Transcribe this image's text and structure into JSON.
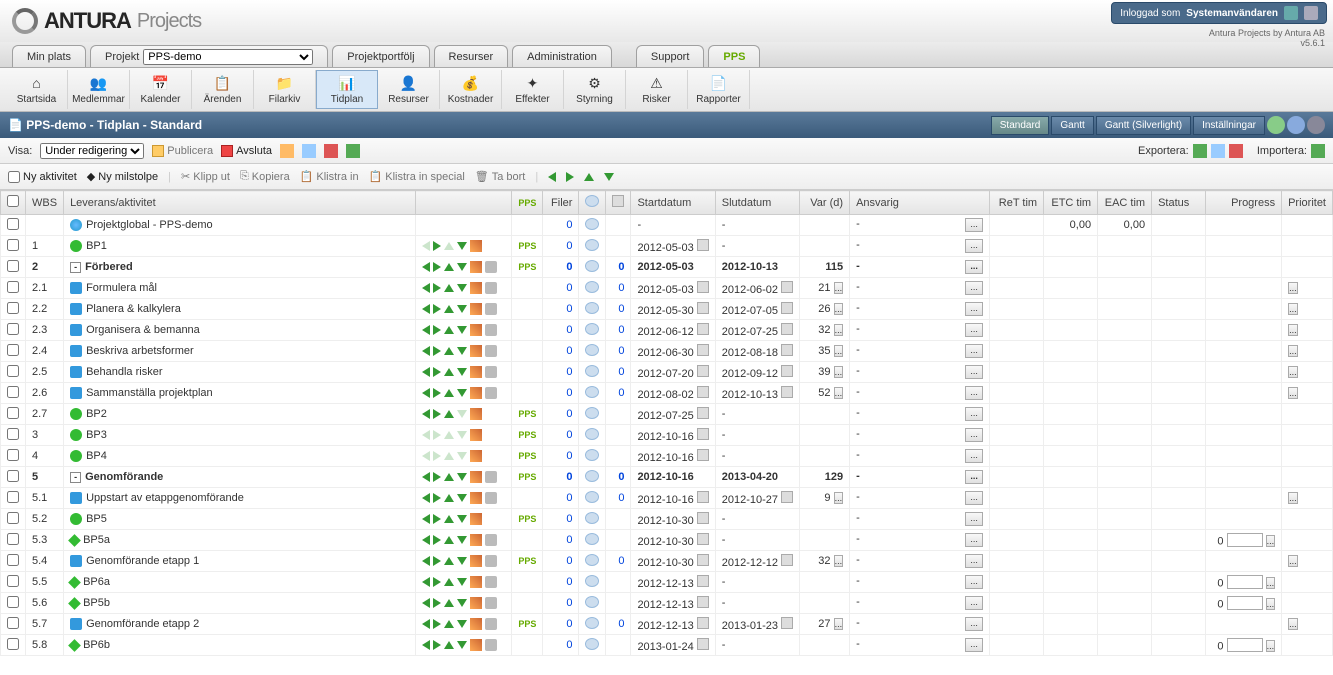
{
  "brand": {
    "name": "ANTURA",
    "product": "Projects",
    "byline": "Antura Projects by Antura AB",
    "version": "v5.6.1"
  },
  "user": {
    "label": "Inloggad som",
    "name": "Systemanvändaren"
  },
  "tabs": {
    "minplats": "Min plats",
    "projekt": "Projekt",
    "projval": "PPS-demo",
    "portfolj": "Projektportfölj",
    "resurser": "Resurser",
    "admin": "Administration",
    "support": "Support",
    "pps": "PPS"
  },
  "subnav": {
    "startsida": "Startsida",
    "medlemmar": "Medlemmar",
    "kalender": "Kalender",
    "arenden": "Ärenden",
    "filarkiv": "Filarkiv",
    "tidplan": "Tidplan",
    "resurser": "Resurser",
    "kostnader": "Kostnader",
    "effekter": "Effekter",
    "styrning": "Styrning",
    "risker": "Risker",
    "rapporter": "Rapporter"
  },
  "title": {
    "text": "PPS-demo - Tidplan - Standard",
    "r": {
      "std": "Standard",
      "gantt": "Gantt",
      "gsilver": "Gantt (Silverlight)",
      "inst": "Inställningar"
    }
  },
  "bar1": {
    "visa": "Visa:",
    "sel": "Under redigering",
    "pub": "Publicera",
    "avs": "Avsluta",
    "exp": "Exportera:",
    "imp": "Importera:"
  },
  "bar2": {
    "nyakt": "Ny aktivitet",
    "nymil": "Ny milstolpe",
    "klipp": "Klipp ut",
    "kopiera": "Kopiera",
    "klistra": "Klistra in",
    "klistras": "Klistra in special",
    "tabort": "Ta bort"
  },
  "cols": {
    "wbs": "WBS",
    "lev": "Leverans/aktivitet",
    "pps": "PPS",
    "filer": "Filer",
    "start": "Startdatum",
    "slut": "Slutdatum",
    "var": "Var (d)",
    "ansv": "Ansvarig",
    "ret": "ReT tim",
    "etc": "ETC tim",
    "eac": "EAC tim",
    "status": "Status",
    "prog": "Progress",
    "prio": "Prioritet"
  },
  "rows": [
    {
      "wbs": "",
      "name": "Projektglobal - PPS-demo",
      "icon": "globe",
      "bold": false,
      "tree": "",
      "pps": false,
      "filer": "0",
      "c0": null,
      "start": "-",
      "cal1": false,
      "slut": "-",
      "cal2": false,
      "var": "",
      "varbtn": false,
      "ansv": "-",
      "ansvbtn": true,
      "etc": "0,00",
      "eac": "0,00",
      "prog": null,
      "ctrls": false,
      "trash": false
    },
    {
      "wbs": "1",
      "name": "BP1",
      "icon": "dot",
      "bold": false,
      "tree": "",
      "pps": true,
      "filer": "0",
      "c0": null,
      "start": "2012-05-03",
      "cal1": true,
      "slut": "-",
      "cal2": false,
      "var": "",
      "varbtn": false,
      "ansv": "-",
      "ansvbtn": true,
      "etc": "",
      "eac": "",
      "prog": null,
      "ctrls": true,
      "trash": false,
      "dimL": true,
      "dimU": true
    },
    {
      "wbs": "2",
      "name": "Förbered",
      "icon": "",
      "bold": true,
      "tree": "-",
      "pps": true,
      "filer": "0",
      "c0": "0",
      "start": "2012-05-03",
      "cal1": false,
      "slut": "2012-10-13",
      "cal2": false,
      "var": "115",
      "varbtn": false,
      "ansv": "-",
      "ansvbtn": true,
      "etc": "",
      "eac": "",
      "prog": null,
      "ctrls": true,
      "trash": true
    },
    {
      "wbs": "2.1",
      "name": "Formulera mål",
      "icon": "box",
      "bold": false,
      "tree": "",
      "pps": false,
      "filer": "0",
      "c0": "0",
      "start": "2012-05-03",
      "cal1": true,
      "slut": "2012-06-02",
      "cal2": true,
      "var": "21",
      "varbtn": true,
      "ansv": "-",
      "ansvbtn": true,
      "etc": "",
      "eac": "",
      "prog": null,
      "ctrls": true,
      "trash": true,
      "ind": 2,
      "prio": true
    },
    {
      "wbs": "2.2",
      "name": "Planera & kalkylera",
      "icon": "box",
      "bold": false,
      "tree": "",
      "pps": false,
      "filer": "0",
      "c0": "0",
      "start": "2012-05-30",
      "cal1": true,
      "slut": "2012-07-05",
      "cal2": true,
      "var": "26",
      "varbtn": true,
      "ansv": "-",
      "ansvbtn": true,
      "etc": "",
      "eac": "",
      "prog": null,
      "ctrls": true,
      "trash": true,
      "ind": 2,
      "prio": true
    },
    {
      "wbs": "2.3",
      "name": "Organisera & bemanna",
      "icon": "box",
      "bold": false,
      "tree": "",
      "pps": false,
      "filer": "0",
      "c0": "0",
      "start": "2012-06-12",
      "cal1": true,
      "slut": "2012-07-25",
      "cal2": true,
      "var": "32",
      "varbtn": true,
      "ansv": "-",
      "ansvbtn": true,
      "etc": "",
      "eac": "",
      "prog": null,
      "ctrls": true,
      "trash": true,
      "ind": 2,
      "prio": true
    },
    {
      "wbs": "2.4",
      "name": "Beskriva arbetsformer",
      "icon": "box",
      "bold": false,
      "tree": "",
      "pps": false,
      "filer": "0",
      "c0": "0",
      "start": "2012-06-30",
      "cal1": true,
      "slut": "2012-08-18",
      "cal2": true,
      "var": "35",
      "varbtn": true,
      "ansv": "-",
      "ansvbtn": true,
      "etc": "",
      "eac": "",
      "prog": null,
      "ctrls": true,
      "trash": true,
      "ind": 2,
      "prio": true
    },
    {
      "wbs": "2.5",
      "name": "Behandla risker",
      "icon": "box",
      "bold": false,
      "tree": "",
      "pps": false,
      "filer": "0",
      "c0": "0",
      "start": "2012-07-20",
      "cal1": true,
      "slut": "2012-09-12",
      "cal2": true,
      "var": "39",
      "varbtn": true,
      "ansv": "-",
      "ansvbtn": true,
      "etc": "",
      "eac": "",
      "prog": null,
      "ctrls": true,
      "trash": true,
      "ind": 2,
      "prio": true
    },
    {
      "wbs": "2.6",
      "name": "Sammanställa projektplan",
      "icon": "box",
      "bold": false,
      "tree": "",
      "pps": false,
      "filer": "0",
      "c0": "0",
      "start": "2012-08-02",
      "cal1": true,
      "slut": "2012-10-13",
      "cal2": true,
      "var": "52",
      "varbtn": true,
      "ansv": "-",
      "ansvbtn": true,
      "etc": "",
      "eac": "",
      "prog": null,
      "ctrls": true,
      "trash": true,
      "ind": 2,
      "prio": true
    },
    {
      "wbs": "2.7",
      "name": "BP2",
      "icon": "dot",
      "bold": false,
      "tree": "",
      "pps": true,
      "filer": "0",
      "c0": null,
      "start": "2012-07-25",
      "cal1": true,
      "slut": "-",
      "cal2": false,
      "var": "",
      "varbtn": false,
      "ansv": "-",
      "ansvbtn": true,
      "etc": "",
      "eac": "",
      "prog": null,
      "ctrls": true,
      "trash": false,
      "ind": 2,
      "dimD": true
    },
    {
      "wbs": "3",
      "name": "BP3",
      "icon": "dot",
      "bold": false,
      "tree": "",
      "pps": true,
      "filer": "0",
      "c0": null,
      "start": "2012-10-16",
      "cal1": true,
      "slut": "-",
      "cal2": false,
      "var": "",
      "varbtn": false,
      "ansv": "-",
      "ansvbtn": true,
      "etc": "",
      "eac": "",
      "prog": null,
      "ctrls": true,
      "trash": false,
      "dimL": true,
      "dimR": true,
      "dimU": true,
      "dimD": true
    },
    {
      "wbs": "4",
      "name": "BP4",
      "icon": "dot",
      "bold": false,
      "tree": "",
      "pps": true,
      "filer": "0",
      "c0": null,
      "start": "2012-10-16",
      "cal1": true,
      "slut": "-",
      "cal2": false,
      "var": "",
      "varbtn": false,
      "ansv": "-",
      "ansvbtn": true,
      "etc": "",
      "eac": "",
      "prog": null,
      "ctrls": true,
      "trash": false,
      "dimL": true,
      "dimR": true,
      "dimU": true,
      "dimD": true
    },
    {
      "wbs": "5",
      "name": "Genomförande",
      "icon": "",
      "bold": true,
      "tree": "-",
      "pps": true,
      "filer": "0",
      "c0": "0",
      "start": "2012-10-16",
      "cal1": false,
      "slut": "2013-04-20",
      "cal2": false,
      "var": "129",
      "varbtn": false,
      "ansv": "-",
      "ansvbtn": true,
      "etc": "",
      "eac": "",
      "prog": null,
      "ctrls": true,
      "trash": true
    },
    {
      "wbs": "5.1",
      "name": "Uppstart av etappgenomförande",
      "icon": "box",
      "bold": false,
      "tree": "",
      "pps": false,
      "filer": "0",
      "c0": "0",
      "start": "2012-10-16",
      "cal1": true,
      "slut": "2012-10-27",
      "cal2": true,
      "var": "9",
      "varbtn": true,
      "ansv": "-",
      "ansvbtn": true,
      "etc": "",
      "eac": "",
      "prog": null,
      "ctrls": true,
      "trash": true,
      "ind": 2,
      "prio": true
    },
    {
      "wbs": "5.2",
      "name": "BP5",
      "icon": "dot",
      "bold": false,
      "tree": "",
      "pps": true,
      "filer": "0",
      "c0": null,
      "start": "2012-10-30",
      "cal1": true,
      "slut": "-",
      "cal2": false,
      "var": "",
      "varbtn": false,
      "ansv": "-",
      "ansvbtn": true,
      "etc": "",
      "eac": "",
      "prog": null,
      "ctrls": true,
      "trash": false,
      "ind": 2
    },
    {
      "wbs": "5.3",
      "name": "BP5a",
      "icon": "diam",
      "bold": false,
      "tree": "",
      "pps": false,
      "filer": "0",
      "c0": null,
      "start": "2012-10-30",
      "cal1": true,
      "slut": "-",
      "cal2": false,
      "var": "",
      "varbtn": false,
      "ansv": "-",
      "ansvbtn": true,
      "etc": "",
      "eac": "",
      "prog": "0",
      "ctrls": true,
      "trash": true,
      "ind": 2
    },
    {
      "wbs": "5.4",
      "name": "Genomförande etapp 1",
      "icon": "box",
      "bold": false,
      "tree": "",
      "pps": true,
      "filer": "0",
      "c0": "0",
      "start": "2012-10-30",
      "cal1": true,
      "slut": "2012-12-12",
      "cal2": true,
      "var": "32",
      "varbtn": true,
      "ansv": "-",
      "ansvbtn": true,
      "etc": "",
      "eac": "",
      "prog": null,
      "ctrls": true,
      "trash": true,
      "ind": 2,
      "prio": true
    },
    {
      "wbs": "5.5",
      "name": "BP6a",
      "icon": "diam",
      "bold": false,
      "tree": "",
      "pps": false,
      "filer": "0",
      "c0": null,
      "start": "2012-12-13",
      "cal1": true,
      "slut": "-",
      "cal2": false,
      "var": "",
      "varbtn": false,
      "ansv": "-",
      "ansvbtn": true,
      "etc": "",
      "eac": "",
      "prog": "0",
      "ctrls": true,
      "trash": true,
      "ind": 2
    },
    {
      "wbs": "5.6",
      "name": "BP5b",
      "icon": "diam",
      "bold": false,
      "tree": "",
      "pps": false,
      "filer": "0",
      "c0": null,
      "start": "2012-12-13",
      "cal1": true,
      "slut": "-",
      "cal2": false,
      "var": "",
      "varbtn": false,
      "ansv": "-",
      "ansvbtn": true,
      "etc": "",
      "eac": "",
      "prog": "0",
      "ctrls": true,
      "trash": true,
      "ind": 2
    },
    {
      "wbs": "5.7",
      "name": "Genomförande etapp 2",
      "icon": "box",
      "bold": false,
      "tree": "",
      "pps": true,
      "filer": "0",
      "c0": "0",
      "start": "2012-12-13",
      "cal1": true,
      "slut": "2013-01-23",
      "cal2": true,
      "var": "27",
      "varbtn": true,
      "ansv": "-",
      "ansvbtn": true,
      "etc": "",
      "eac": "",
      "prog": null,
      "ctrls": true,
      "trash": true,
      "ind": 2,
      "prio": true
    },
    {
      "wbs": "5.8",
      "name": "BP6b",
      "icon": "diam",
      "bold": false,
      "tree": "",
      "pps": false,
      "filer": "0",
      "c0": null,
      "start": "2013-01-24",
      "cal1": true,
      "slut": "-",
      "cal2": false,
      "var": "",
      "varbtn": false,
      "ansv": "-",
      "ansvbtn": true,
      "etc": "",
      "eac": "",
      "prog": "0",
      "ctrls": true,
      "trash": true,
      "ind": 2
    }
  ]
}
